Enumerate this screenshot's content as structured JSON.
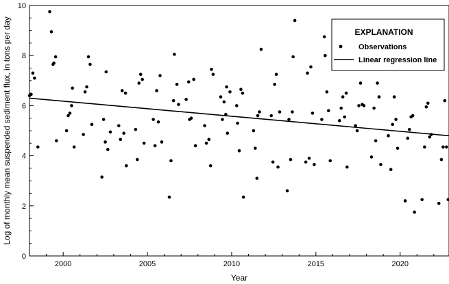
{
  "chart_data": {
    "type": "scatter",
    "xlabel": "Year",
    "ylabel": "Log of monthly mean suspended sediment flux, in tons per day",
    "xlim": [
      1998.0,
      2022.9
    ],
    "ylim": [
      0,
      10
    ],
    "x_ticks": [
      2000,
      2005,
      2010,
      2015,
      2020
    ],
    "x_tick_labels": [
      "2000",
      "2005",
      "2010",
      "2015",
      "2020"
    ],
    "y_ticks": [
      0,
      2,
      4,
      6,
      8,
      10
    ],
    "y_tick_labels": [
      "0",
      "2",
      "4",
      "6",
      "8",
      "10"
    ],
    "grid": false,
    "legend": {
      "placement": "top-right",
      "title": "EXPLANATION",
      "observations_label": "Observations",
      "regression_label": "Linear regression line"
    },
    "regression_line": {
      "x": [
        1998.0,
        2022.9
      ],
      "y": [
        6.3,
        4.8
      ]
    },
    "series": [
      {
        "name": "Observations",
        "points": [
          [
            1998.0,
            6.4
          ],
          [
            1998.1,
            6.45
          ],
          [
            1998.2,
            7.3
          ],
          [
            1998.3,
            7.1
          ],
          [
            1998.5,
            4.35
          ],
          [
            1999.2,
            9.75
          ],
          [
            1999.3,
            8.95
          ],
          [
            1999.4,
            7.65
          ],
          [
            1999.45,
            7.7
          ],
          [
            1999.55,
            7.95
          ],
          [
            1999.6,
            4.6
          ],
          [
            2000.2,
            5.0
          ],
          [
            2000.3,
            5.6
          ],
          [
            2000.4,
            5.7
          ],
          [
            2000.5,
            6.0
          ],
          [
            2000.55,
            6.7
          ],
          [
            2000.65,
            4.35
          ],
          [
            2001.2,
            4.85
          ],
          [
            2001.3,
            6.55
          ],
          [
            2001.4,
            6.75
          ],
          [
            2001.5,
            7.95
          ],
          [
            2001.6,
            7.65
          ],
          [
            2001.7,
            5.25
          ],
          [
            2002.3,
            3.15
          ],
          [
            2002.4,
            5.45
          ],
          [
            2002.5,
            4.55
          ],
          [
            2002.55,
            7.35
          ],
          [
            2002.65,
            4.25
          ],
          [
            2002.8,
            4.95
          ],
          [
            2003.3,
            5.2
          ],
          [
            2003.4,
            4.65
          ],
          [
            2003.5,
            6.6
          ],
          [
            2003.6,
            4.9
          ],
          [
            2003.7,
            6.5
          ],
          [
            2003.75,
            3.6
          ],
          [
            2004.3,
            5.05
          ],
          [
            2004.4,
            3.85
          ],
          [
            2004.5,
            6.9
          ],
          [
            2004.6,
            7.25
          ],
          [
            2004.7,
            7.05
          ],
          [
            2004.8,
            4.5
          ],
          [
            2005.35,
            5.45
          ],
          [
            2005.45,
            4.4
          ],
          [
            2005.55,
            6.6
          ],
          [
            2005.65,
            5.35
          ],
          [
            2005.75,
            7.2
          ],
          [
            2005.85,
            4.55
          ],
          [
            2006.3,
            2.35
          ],
          [
            2006.4,
            3.8
          ],
          [
            2006.55,
            6.2
          ],
          [
            2006.6,
            8.05
          ],
          [
            2006.75,
            6.85
          ],
          [
            2006.85,
            6.05
          ],
          [
            2007.3,
            6.25
          ],
          [
            2007.45,
            6.95
          ],
          [
            2007.5,
            5.45
          ],
          [
            2007.6,
            5.5
          ],
          [
            2007.75,
            7.05
          ],
          [
            2007.85,
            4.4
          ],
          [
            2008.4,
            5.2
          ],
          [
            2008.5,
            4.5
          ],
          [
            2008.65,
            4.65
          ],
          [
            2008.75,
            3.6
          ],
          [
            2008.8,
            7.45
          ],
          [
            2008.9,
            7.25
          ],
          [
            2009.35,
            6.35
          ],
          [
            2009.45,
            5.45
          ],
          [
            2009.55,
            6.15
          ],
          [
            2009.65,
            5.65
          ],
          [
            2009.7,
            6.75
          ],
          [
            2009.75,
            4.9
          ],
          [
            2009.9,
            6.55
          ],
          [
            2010.3,
            6.0
          ],
          [
            2010.35,
            5.3
          ],
          [
            2010.45,
            4.2
          ],
          [
            2010.55,
            6.65
          ],
          [
            2010.65,
            6.5
          ],
          [
            2010.7,
            2.35
          ],
          [
            2011.3,
            5.0
          ],
          [
            2011.4,
            4.3
          ],
          [
            2011.5,
            3.1
          ],
          [
            2011.55,
            5.6
          ],
          [
            2011.65,
            5.75
          ],
          [
            2011.75,
            8.25
          ],
          [
            2012.35,
            5.6
          ],
          [
            2012.45,
            3.75
          ],
          [
            2012.55,
            6.85
          ],
          [
            2012.65,
            7.25
          ],
          [
            2012.75,
            3.55
          ],
          [
            2012.85,
            5.75
          ],
          [
            2013.3,
            2.6
          ],
          [
            2013.4,
            5.45
          ],
          [
            2013.5,
            3.85
          ],
          [
            2013.6,
            5.75
          ],
          [
            2013.65,
            7.95
          ],
          [
            2013.75,
            9.4
          ],
          [
            2014.4,
            3.75
          ],
          [
            2014.5,
            7.3
          ],
          [
            2014.6,
            3.9
          ],
          [
            2014.7,
            7.55
          ],
          [
            2014.8,
            5.7
          ],
          [
            2014.9,
            3.65
          ],
          [
            2015.35,
            5.45
          ],
          [
            2015.5,
            8.75
          ],
          [
            2015.55,
            8.0
          ],
          [
            2015.65,
            6.55
          ],
          [
            2015.75,
            5.8
          ],
          [
            2015.85,
            3.8
          ],
          [
            2016.4,
            5.4
          ],
          [
            2016.5,
            5.9
          ],
          [
            2016.6,
            6.35
          ],
          [
            2016.7,
            5.55
          ],
          [
            2016.8,
            6.5
          ],
          [
            2016.85,
            3.55
          ],
          [
            2017.35,
            5.2
          ],
          [
            2017.45,
            5.0
          ],
          [
            2017.55,
            6.0
          ],
          [
            2017.65,
            6.9
          ],
          [
            2017.75,
            6.05
          ],
          [
            2017.85,
            6.0
          ],
          [
            2018.3,
            3.95
          ],
          [
            2018.45,
            5.9
          ],
          [
            2018.55,
            4.6
          ],
          [
            2018.65,
            6.9
          ],
          [
            2018.75,
            6.35
          ],
          [
            2018.85,
            3.65
          ],
          [
            2019.3,
            4.8
          ],
          [
            2019.45,
            3.45
          ],
          [
            2019.55,
            5.25
          ],
          [
            2019.65,
            6.35
          ],
          [
            2019.75,
            5.45
          ],
          [
            2019.85,
            4.3
          ],
          [
            2020.3,
            2.2
          ],
          [
            2020.45,
            4.7
          ],
          [
            2020.55,
            5.05
          ],
          [
            2020.65,
            5.55
          ],
          [
            2020.75,
            5.6
          ],
          [
            2020.85,
            1.75
          ],
          [
            2021.3,
            2.25
          ],
          [
            2021.45,
            4.35
          ],
          [
            2021.55,
            5.95
          ],
          [
            2021.65,
            6.1
          ],
          [
            2021.75,
            4.75
          ],
          [
            2021.85,
            4.85
          ],
          [
            2022.3,
            2.1
          ],
          [
            2022.45,
            3.85
          ],
          [
            2022.55,
            4.35
          ],
          [
            2022.65,
            6.2
          ],
          [
            2022.75,
            4.35
          ],
          [
            2022.85,
            2.25
          ]
        ]
      }
    ]
  }
}
